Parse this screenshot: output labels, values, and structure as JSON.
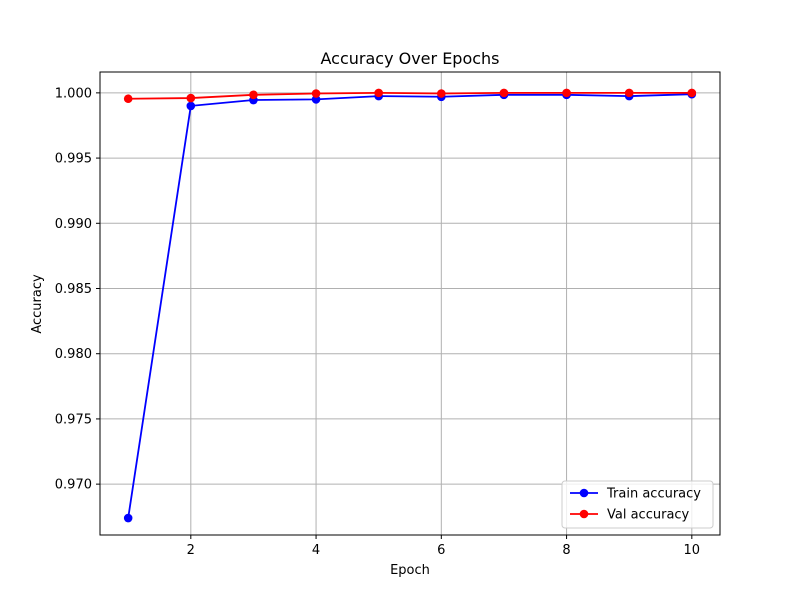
{
  "chart_data": {
    "type": "line",
    "title": "Accuracy Over Epochs",
    "xlabel": "Epoch",
    "ylabel": "Accuracy",
    "xlim": [
      0.55,
      10.45
    ],
    "ylim": [
      0.9661,
      1.0016
    ],
    "xticks": [
      2,
      4,
      6,
      8,
      10
    ],
    "xtick_labels": [
      "2",
      "4",
      "6",
      "8",
      "10"
    ],
    "yticks": [
      0.97,
      0.975,
      0.98,
      0.985,
      0.99,
      0.995,
      1.0
    ],
    "ytick_labels": [
      "0.970",
      "0.975",
      "0.980",
      "0.985",
      "0.990",
      "0.995",
      "1.000"
    ],
    "grid": true,
    "legend_position": "lower-right",
    "x": [
      1,
      2,
      3,
      4,
      5,
      6,
      7,
      8,
      9,
      10
    ],
    "series": [
      {
        "name": "Train accuracy",
        "color": "#0000ff",
        "marker": "circle",
        "values": [
          0.9674,
          0.999,
          0.99945,
          0.9995,
          0.99975,
          0.9997,
          0.99985,
          0.99985,
          0.99975,
          0.9999
        ]
      },
      {
        "name": "Val accuracy",
        "color": "#ff0000",
        "marker": "circle",
        "values": [
          0.99955,
          0.9996,
          0.99985,
          0.99995,
          1.0,
          0.99995,
          1.0,
          1.0,
          1.0,
          1.0
        ]
      }
    ]
  }
}
